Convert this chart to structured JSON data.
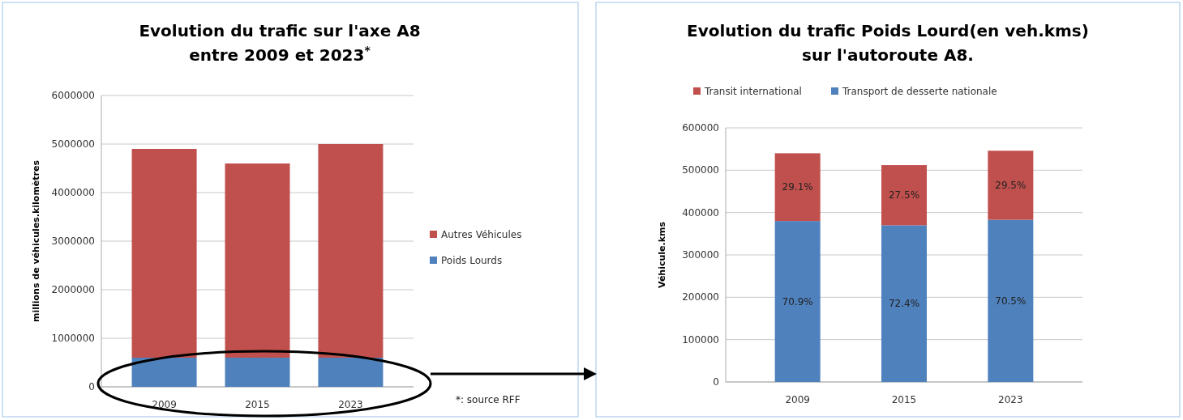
{
  "chart_data": [
    {
      "type": "bar",
      "title": "Evolution du trafic sur l'axe A8\nentre 2009 et 2023$^{*}$",
      "ylabel": "millions de véhicules.kilomètres",
      "categories": [
        "2009",
        "2015",
        "2023"
      ],
      "stacked": true,
      "series": [
        {
          "name": "Poids Lourds",
          "color": "#4f81bd",
          "values": [
            600000,
            600000,
            600000
          ]
        },
        {
          "name": "Autres Véhicules",
          "color": "#c0504d",
          "values": [
            4300000,
            4000000,
            4400000
          ]
        }
      ],
      "ylim": [
        0,
        6000000
      ],
      "yticks": [
        0,
        1000000,
        2000000,
        3000000,
        4000000,
        5000000,
        6000000
      ],
      "grid": "y",
      "legend": "right",
      "annotations": [
        "*: source RFF"
      ]
    },
    {
      "type": "bar",
      "title": "Evolution du trafic Poids Lourd(en veh.kms)\nsur l'autoroute A8.",
      "ylabel": "Véhicule.kms",
      "categories": [
        "2009",
        "2015",
        "2023"
      ],
      "stacked": true,
      "series": [
        {
          "name": "Transport de desserte nationale",
          "color": "#4f81bd",
          "values": [
            380000,
            370000,
            383000
          ]
        },
        {
          "name": "Transit international",
          "color": "#c0504d",
          "values": [
            160000,
            142000,
            163000
          ]
        }
      ],
      "ylim": [
        0,
        600000
      ],
      "yticks": [
        0,
        100000,
        200000,
        300000,
        400000,
        500000,
        600000
      ],
      "grid": "y",
      "legend": "top",
      "annotations": [
        "70.9%",
        "72.4%",
        "70.5%",
        "29.1%",
        "27.5%",
        "29.5%"
      ]
    }
  ]
}
